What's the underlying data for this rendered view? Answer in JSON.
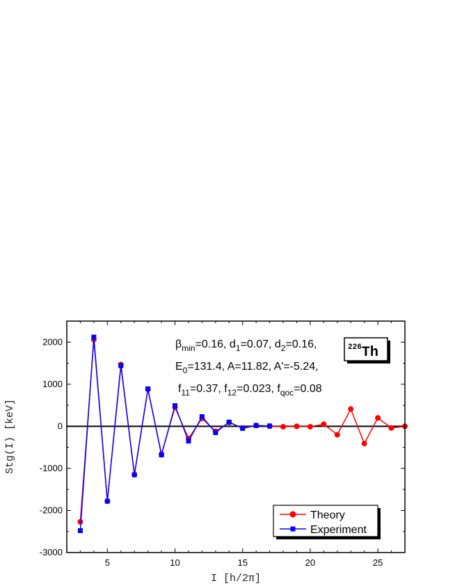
{
  "chart_data": {
    "type": "line",
    "xlabel": "I  [h/2π]",
    "ylabel": "Stg(I)  [keV]",
    "xlim": [
      2,
      27
    ],
    "ylim": [
      -3000,
      2500
    ],
    "xticks": [
      5,
      10,
      15,
      20,
      25
    ],
    "yticks": [
      -3000,
      -2000,
      -1000,
      0,
      1000,
      2000
    ],
    "ytick_labels": [
      "-3000",
      "-2000",
      "-1000",
      "0",
      "1000",
      "2000"
    ],
    "xtick_labels": [
      "5",
      "10",
      "15",
      "20",
      "25"
    ],
    "annotation": {
      "line1": {
        "beta": "β",
        "beta_sub": "min",
        "rest1": "=0.16, d",
        "d1_sub": "1",
        "rest2": "=0.07, d",
        "d2_sub": "2",
        "rest3": "=0.16,"
      },
      "line2": {
        "e": "E",
        "e_sub": "0",
        "rest": "=131.4,  A=11.82, A'=-5.24,"
      },
      "line3": {
        "f1": "f",
        "f11_sub": "11",
        "r1": "=0.37,  f",
        "f12_sub": "12",
        "r2": "=0.023, f",
        "fqoc_sub": "qoc",
        "r3": "=0.08"
      }
    },
    "nucleus": {
      "mass": "226",
      "symbol": "Th"
    },
    "legend_position": "bottom-right",
    "series": [
      {
        "name": "Theory",
        "color": "#ff0000",
        "marker": "circle",
        "x": [
          3,
          4,
          5,
          6,
          7,
          8,
          9,
          10,
          11,
          12,
          13,
          14,
          15,
          16,
          17,
          18,
          19,
          20,
          21,
          22,
          23,
          24,
          25,
          26,
          27
        ],
        "y": [
          -2270,
          2060,
          -1780,
          1470,
          -1150,
          880,
          -660,
          450,
          -290,
          190,
          -120,
          90,
          -40,
          20,
          0,
          -10,
          0,
          -10,
          50,
          -200,
          410,
          -410,
          200,
          -40,
          0
        ]
      },
      {
        "name": "Experiment",
        "color": "#0000ff",
        "marker": "square",
        "x": [
          3,
          4,
          5,
          6,
          7,
          8,
          9,
          10,
          11,
          12,
          13,
          14,
          15,
          16,
          17
        ],
        "y": [
          -2480,
          2120,
          -1780,
          1440,
          -1150,
          890,
          -680,
          490,
          -350,
          230,
          -150,
          100,
          -50,
          20,
          10
        ]
      }
    ]
  }
}
